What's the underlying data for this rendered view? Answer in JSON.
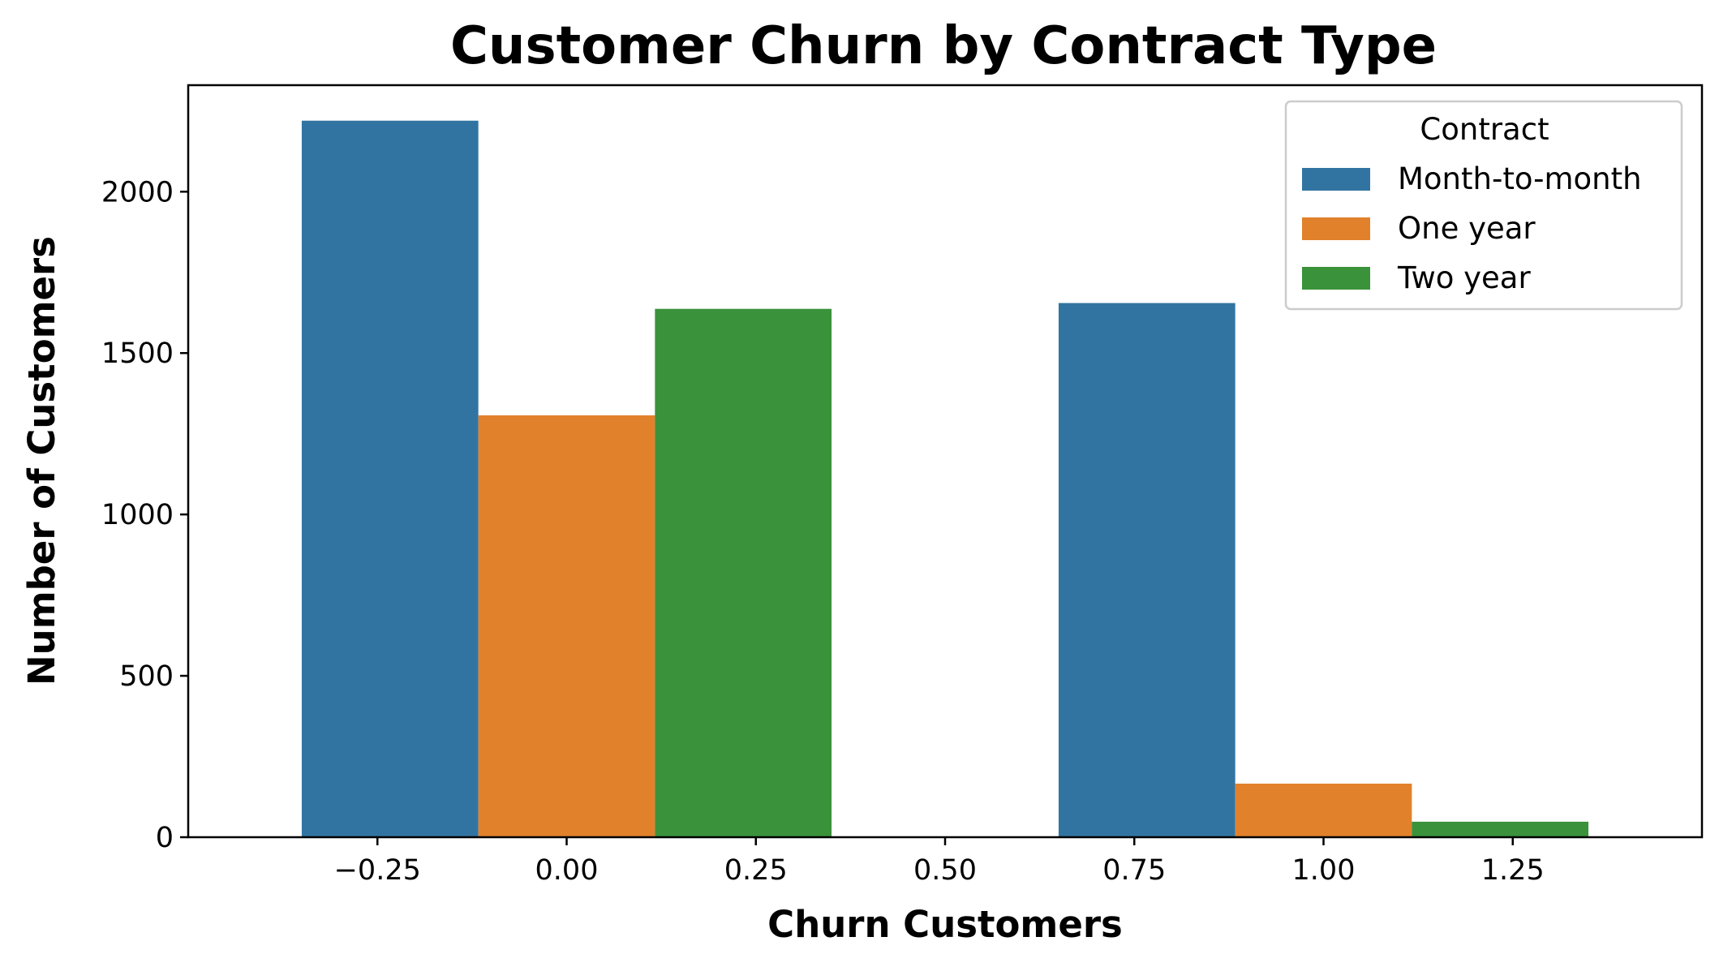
{
  "chart_data": {
    "type": "bar",
    "title": "Customer Churn by Contract Type",
    "xlabel": "Churn Customers",
    "ylabel": "Number of Customers",
    "xlim": [
      -0.5,
      1.5
    ],
    "ylim": [
      0,
      2330
    ],
    "xticks": [
      -0.25,
      0.0,
      0.25,
      0.5,
      0.75,
      1.0,
      1.25
    ],
    "xtick_labels": [
      "−0.25",
      "0.00",
      "0.25",
      "0.50",
      "0.75",
      "1.00",
      "1.25"
    ],
    "yticks": [
      0,
      500,
      1000,
      1500,
      2000
    ],
    "ytick_labels": [
      "0",
      "500",
      "1000",
      "1500",
      "2000"
    ],
    "group_positions": [
      0,
      1
    ],
    "bar_group_width": 0.7,
    "grid": false,
    "legend": {
      "title": "Contract",
      "placement": "top-right"
    },
    "series": [
      {
        "name": "Month-to-month",
        "color": "#3274a1",
        "values": [
          2220,
          1655
        ]
      },
      {
        "name": "One year",
        "color": "#e1812c",
        "values": [
          1307,
          166
        ]
      },
      {
        "name": "Two year",
        "color": "#3a923a",
        "values": [
          1637,
          48
        ]
      }
    ]
  }
}
